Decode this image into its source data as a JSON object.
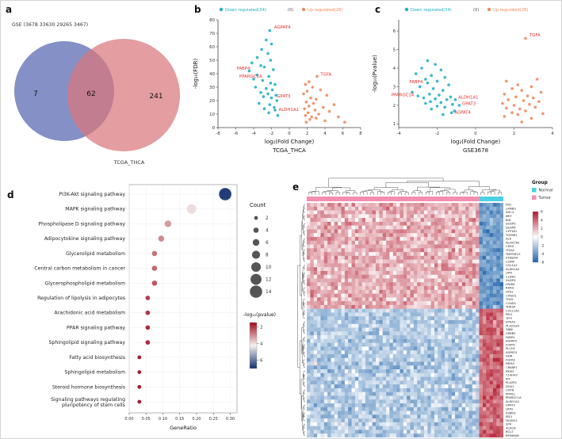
{
  "figure": {
    "panel_labels": [
      "a",
      "b",
      "c",
      "d",
      "e"
    ]
  },
  "chart_data": [
    {
      "id": "venn",
      "type": "venn",
      "title": "GSE (3678 33630 29265 3467)",
      "left_count": "7",
      "overlap_count": "62",
      "right_count": "241",
      "right_label": "TCGA_THCA",
      "left_color": "#6f7dbc",
      "right_color": "#d9777c"
    },
    {
      "id": "volcano_tcga",
      "type": "scatter",
      "legend": {
        "down": "Down regulated(34)",
        "mid": "(0)",
        "up": "Up regulated(28)"
      },
      "down_color": "#23b0c5",
      "up_color": "#f08a5f",
      "label_color": "#e8312f",
      "ylabel": "-log₁₀(FDR)",
      "xlabel": "log₂(Fold Change)",
      "dataset": "TCGA_THCA",
      "xlim": [
        -8,
        8
      ],
      "xticks": [
        -8,
        -6,
        -4,
        -2,
        0,
        2,
        4,
        6,
        8
      ],
      "ylim": [
        0,
        80
      ],
      "yticks": [
        0,
        10,
        20,
        30,
        40,
        50,
        60,
        70,
        80
      ],
      "down_points": [
        [
          -2.2,
          72
        ],
        [
          -2.6,
          65
        ],
        [
          -2.0,
          62
        ],
        [
          -3.1,
          58
        ],
        [
          -2.4,
          55
        ],
        [
          -3.6,
          52
        ],
        [
          -2.1,
          50
        ],
        [
          -4.2,
          48
        ],
        [
          -3.2,
          46
        ],
        [
          -2.8,
          45
        ],
        [
          -1.8,
          43
        ],
        [
          -4.5,
          42
        ],
        [
          -3.6,
          39
        ],
        [
          -2.3,
          38
        ],
        [
          -4.0,
          36
        ],
        [
          -3.0,
          35
        ],
        [
          -2.1,
          33
        ],
        [
          -1.6,
          32
        ],
        [
          -3.8,
          30
        ],
        [
          -2.6,
          29
        ],
        [
          -1.9,
          28
        ],
        [
          -3.2,
          26
        ],
        [
          -2.4,
          25
        ],
        [
          -1.5,
          24
        ],
        [
          -2.9,
          23
        ],
        [
          -2.0,
          22
        ],
        [
          -1.4,
          20
        ],
        [
          -3.4,
          18
        ],
        [
          -2.2,
          17
        ],
        [
          -1.7,
          15
        ],
        [
          -2.8,
          14
        ],
        [
          -1.6,
          13
        ],
        [
          -2.3,
          11
        ],
        [
          -1.3,
          9
        ]
      ],
      "up_points": [
        [
          3.1,
          38
        ],
        [
          2.2,
          34
        ],
        [
          1.8,
          32
        ],
        [
          2.6,
          30
        ],
        [
          3.5,
          28
        ],
        [
          2.0,
          27
        ],
        [
          1.6,
          25
        ],
        [
          4.2,
          24
        ],
        [
          2.4,
          22
        ],
        [
          3.0,
          21
        ],
        [
          1.9,
          19
        ],
        [
          2.7,
          18
        ],
        [
          5.0,
          17
        ],
        [
          2.2,
          16
        ],
        [
          3.8,
          15
        ],
        [
          1.7,
          14
        ],
        [
          2.9,
          13
        ],
        [
          4.5,
          12
        ],
        [
          2.1,
          11
        ],
        [
          3.3,
          10
        ],
        [
          1.8,
          9
        ],
        [
          2.5,
          8
        ],
        [
          5.5,
          8
        ],
        [
          3.0,
          7
        ],
        [
          2.3,
          6
        ],
        [
          4.0,
          5
        ],
        [
          1.9,
          4
        ],
        [
          6.2,
          4
        ]
      ],
      "gene_labels": [
        {
          "gene": "AGPAT4",
          "x": -1.7,
          "y": 73.5,
          "anchor": "start"
        },
        {
          "gene": "FABP4",
          "x": -5.9,
          "y": 43,
          "anchor": "start"
        },
        {
          "gene": "PPARGC1A",
          "x": -5.6,
          "y": 37,
          "anchor": "start"
        },
        {
          "gene": "TGFA",
          "x": 3.5,
          "y": 38.5,
          "anchor": "start"
        },
        {
          "gene": "GPAT3",
          "x": -1.4,
          "y": 22.5,
          "anchor": "start"
        },
        {
          "gene": "ALDH1A1",
          "x": -1.2,
          "y": 12.5,
          "anchor": "start"
        }
      ]
    },
    {
      "id": "volcano_gse",
      "type": "scatter",
      "legend": {
        "down": "Down regulated(34)",
        "mid": "(0)",
        "up": "Up regulated(28)"
      },
      "down_color": "#23b0c5",
      "up_color": "#f08a5f",
      "label_color": "#e8312f",
      "ylabel": "-log₁₀(Pvalue)",
      "xlabel": "log₂(Fold Change)",
      "dataset": "GSE3678",
      "xlim": [
        -4,
        4
      ],
      "xticks": [
        -4,
        -2,
        0,
        2,
        4
      ],
      "ylim": [
        0.8,
        6.6
      ],
      "yticks": [
        1,
        2,
        3,
        4,
        5,
        6
      ],
      "down_points": [
        [
          -2.5,
          4.4
        ],
        [
          -2.1,
          4.2
        ],
        [
          -2.8,
          4.0
        ],
        [
          -1.8,
          3.9
        ],
        [
          -3.1,
          3.7
        ],
        [
          -2.3,
          3.6
        ],
        [
          -1.6,
          3.5
        ],
        [
          -2.6,
          3.4
        ],
        [
          -2.0,
          3.3
        ],
        [
          -2.5,
          3.2
        ],
        [
          -1.4,
          3.1
        ],
        [
          -2.9,
          3.0
        ],
        [
          -2.2,
          2.9
        ],
        [
          -1.7,
          2.8
        ],
        [
          -3.3,
          2.7
        ],
        [
          -2.4,
          2.6
        ],
        [
          -1.9,
          2.55
        ],
        [
          -3.0,
          2.5
        ],
        [
          -1.3,
          2.45
        ],
        [
          -2.7,
          2.4
        ],
        [
          -2.1,
          2.35
        ],
        [
          -1.5,
          2.3
        ],
        [
          -1.05,
          2.3
        ],
        [
          -2.35,
          2.2
        ],
        [
          -1.8,
          2.15
        ],
        [
          -2.6,
          2.1
        ],
        [
          -1.2,
          2.05
        ],
        [
          -0.85,
          2.0
        ],
        [
          -2.0,
          1.95
        ],
        [
          -1.6,
          1.9
        ],
        [
          -2.3,
          1.8
        ],
        [
          -1.1,
          1.7
        ],
        [
          -1.25,
          1.6
        ],
        [
          -1.7,
          1.5
        ]
      ],
      "up_points": [
        [
          2.6,
          5.6
        ],
        [
          3.2,
          3.4
        ],
        [
          1.6,
          3.3
        ],
        [
          2.2,
          3.1
        ],
        [
          2.9,
          3.0
        ],
        [
          1.9,
          2.9
        ],
        [
          2.4,
          2.8
        ],
        [
          3.4,
          2.7
        ],
        [
          1.5,
          2.6
        ],
        [
          2.7,
          2.5
        ],
        [
          2.1,
          2.45
        ],
        [
          3.0,
          2.4
        ],
        [
          1.7,
          2.3
        ],
        [
          2.5,
          2.25
        ],
        [
          3.3,
          2.2
        ],
        [
          1.4,
          2.1
        ],
        [
          2.8,
          2.05
        ],
        [
          2.0,
          2.0
        ],
        [
          3.1,
          1.9
        ],
        [
          1.6,
          1.85
        ],
        [
          2.3,
          1.8
        ],
        [
          2.6,
          1.7
        ],
        [
          1.9,
          1.6
        ],
        [
          3.5,
          1.55
        ],
        [
          2.2,
          1.5
        ],
        [
          1.5,
          1.4
        ],
        [
          2.9,
          1.3
        ],
        [
          2.4,
          1.1
        ]
      ],
      "gene_labels": [
        {
          "gene": "TGFA",
          "x": 2.8,
          "y": 5.7,
          "anchor": "start"
        },
        {
          "gene": "FABP4",
          "x": -2.75,
          "y": 3.18,
          "anchor": "end"
        },
        {
          "gene": "PPARGC1A",
          "x": -3.2,
          "y": 2.48,
          "anchor": "end"
        },
        {
          "gene": "ALDH1A1",
          "x": -0.9,
          "y": 2.35,
          "anchor": "start"
        },
        {
          "gene": "GPAT3",
          "x": -0.7,
          "y": 2.02,
          "anchor": "start"
        },
        {
          "gene": "AGPAT4",
          "x": -1.1,
          "y": 1.55,
          "anchor": "start"
        }
      ]
    },
    {
      "id": "pathway_dotplot",
      "type": "bubble",
      "xlabel": "GeneRatio",
      "xlim": [
        0,
        0.32
      ],
      "xticks": [
        0,
        0.05,
        0.1,
        0.15,
        0.2,
        0.25,
        0.3
      ],
      "count_legend": {
        "title": "Count",
        "values": [
          2,
          4,
          6,
          8,
          10,
          12,
          14
        ]
      },
      "color_legend": {
        "title": "-log₁₀(pvalue)",
        "ticks": [
          2,
          4,
          6
        ],
        "domain": [
          1.5,
          7
        ],
        "top_color": "#9e0d1c",
        "mid_color": "#f5f2f0",
        "bottom_color": "#13306e"
      },
      "rows": [
        {
          "pathway": "PI3K-Akt signaling pathway",
          "gene_ratio": 0.285,
          "count": 14,
          "neglog10_pvalue": 6.8
        },
        {
          "pathway": "MAPK signaling pathway",
          "gene_ratio": 0.185,
          "count": 10,
          "neglog10_pvalue": 4.0
        },
        {
          "pathway": "Phospholipase D signaling pathway",
          "gene_ratio": 0.115,
          "count": 6,
          "neglog10_pvalue": 3.2
        },
        {
          "pathway": "Adipocytokine signaling pathway",
          "gene_ratio": 0.095,
          "count": 5,
          "neglog10_pvalue": 3.0
        },
        {
          "pathway": "Glycerolipid metabolism",
          "gene_ratio": 0.075,
          "count": 4,
          "neglog10_pvalue": 2.7
        },
        {
          "pathway": "Central carbon metabolism in cancer",
          "gene_ratio": 0.075,
          "count": 4,
          "neglog10_pvalue": 2.6
        },
        {
          "pathway": "Glycerophospholipid metabolism",
          "gene_ratio": 0.075,
          "count": 4,
          "neglog10_pvalue": 2.4
        },
        {
          "pathway": "Regulation of lipolysis in adipocytes",
          "gene_ratio": 0.055,
          "count": 3,
          "neglog10_pvalue": 2.1
        },
        {
          "pathway": "Arachidonic acid metabolism",
          "gene_ratio": 0.055,
          "count": 3,
          "neglog10_pvalue": 2.0
        },
        {
          "pathway": "PPAR signaling pathway",
          "gene_ratio": 0.055,
          "count": 3,
          "neglog10_pvalue": 1.9
        },
        {
          "pathway": "Sphingolipid signaling pathway",
          "gene_ratio": 0.055,
          "count": 3,
          "neglog10_pvalue": 1.9
        },
        {
          "pathway": "Fatty acid biosynthesis",
          "gene_ratio": 0.03,
          "count": 2,
          "neglog10_pvalue": 1.7
        },
        {
          "pathway": "Sphingolipid metabolism",
          "gene_ratio": 0.03,
          "count": 2,
          "neglog10_pvalue": 1.7
        },
        {
          "pathway": "Steroid hormone biosynthesis",
          "gene_ratio": 0.03,
          "count": 2,
          "neglog10_pvalue": 1.7
        },
        {
          "pathway": "Signaling pathways regulating pluripotency of stem cells",
          "gene_ratio": 0.03,
          "count": 2,
          "neglog10_pvalue": 1.7
        }
      ]
    },
    {
      "id": "expression_heatmap",
      "type": "heatmap",
      "genes": [
        "FN1",
        "LAMB3",
        "SDC4",
        "MET",
        "BID",
        "DUSP5",
        "DUSP6",
        "CYP1B1",
        "TGFBR1",
        "ALK",
        "ALOX15B",
        "CD55",
        "ITGA2",
        "TNFRSF21",
        "ST8SIA4",
        "COMP",
        "COL1A1",
        "ALDH1A2",
        "LIPH",
        "CLDN1",
        "DUSP4",
        "LPAR5",
        "RXRG",
        "GYS2",
        "CITED1",
        "TGFA",
        "CCND1",
        "THRSP",
        "COL21A1",
        "PID1",
        "TFPI",
        "EPHA3",
        "PLA2G2A",
        "GJB6",
        "GPBB3",
        "FABP4",
        "AGPAT9",
        "FOXP2",
        "PLCH1",
        "AGPAT4",
        "GHR",
        "FGFR2",
        "IMPA2",
        "CRABP1",
        "IPEK3",
        "C14H43",
        "KIT",
        "PLA2R1",
        "DGA1",
        "UGT8",
        "PPM1L",
        "PPARGC1A",
        "ALDH1A1",
        "GPAT3",
        "LRP2",
        "ESRRG",
        "IRS1",
        "FAXDC2",
        "SPX",
        "ACACB",
        "BCL2",
        "RPS6KA6"
      ],
      "n_tumor": 50,
      "n_normal": 7,
      "up_gene_rows": 28,
      "group_legend": {
        "title": "Group",
        "items": [
          {
            "label": "Normal",
            "color": "#4dd0e1"
          },
          {
            "label": "Tumor",
            "color": "#f48fb1"
          }
        ]
      },
      "colorbar_ticks": [
        6,
        4,
        2,
        0,
        -2,
        -4,
        -6
      ],
      "value_range": [
        -6,
        6
      ],
      "positive_color": "#b2182b",
      "negative_color": "#2166ac"
    }
  ]
}
